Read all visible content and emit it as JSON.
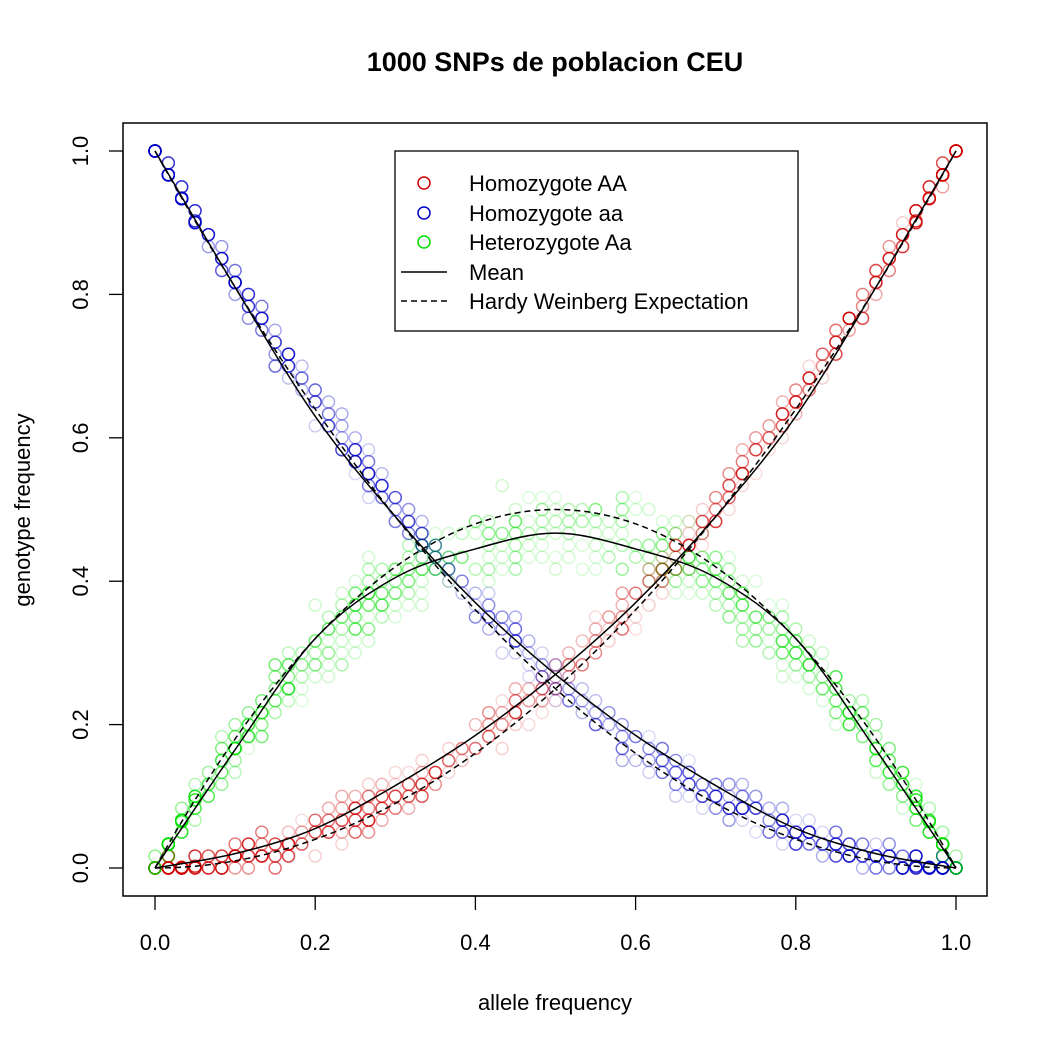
{
  "chart_data": {
    "type": "scatter",
    "title": "1000 SNPs de poblacion CEU",
    "xlabel": "allele frequency",
    "ylabel": "genotype frequency",
    "xlim": [
      0,
      1
    ],
    "ylim": [
      0,
      1
    ],
    "x_ticks": [
      "0.0",
      "0.2",
      "0.4",
      "0.6",
      "0.8",
      "1.0"
    ],
    "y_ticks": [
      "0.0",
      "0.2",
      "0.4",
      "0.6",
      "0.8",
      "1.0"
    ],
    "grid": false,
    "legend_position": "top-center",
    "series": [
      {
        "name": "Homozygote AA",
        "kind": "points",
        "color": "#d00000",
        "formula": "p^2",
        "spread": 0.035
      },
      {
        "name": "Homozygote aa",
        "kind": "points",
        "color": "#0000c8",
        "formula": "(1-p)^2",
        "spread": 0.035
      },
      {
        "name": "Heterozygote Aa",
        "kind": "points",
        "color": "#00e000",
        "formula": "2p(1-p) - deficit",
        "spread": 0.06
      },
      {
        "name": "Mean",
        "kind": "line",
        "line_style": "solid",
        "color": "#000000",
        "curves": {
          "AA": {
            "x": [
              0,
              0.1,
              0.2,
              0.3,
              0.4,
              0.5,
              0.6,
              0.7,
              0.8,
              0.9,
              1.0
            ],
            "y": [
              0,
              0.02,
              0.055,
              0.115,
              0.185,
              0.27,
              0.37,
              0.49,
              0.63,
              0.81,
              1.0
            ]
          },
          "aa": {
            "x": [
              0,
              0.1,
              0.2,
              0.3,
              0.4,
              0.5,
              0.6,
              0.7,
              0.8,
              0.9,
              1.0
            ],
            "y": [
              1.0,
              0.81,
              0.63,
              0.49,
              0.37,
              0.27,
              0.185,
              0.115,
              0.055,
              0.02,
              0
            ]
          },
          "Aa": {
            "x": [
              0,
              0.1,
              0.2,
              0.3,
              0.4,
              0.5,
              0.6,
              0.7,
              0.8,
              0.9,
              1.0
            ],
            "y": [
              0,
              0.165,
              0.32,
              0.405,
              0.445,
              0.467,
              0.445,
              0.405,
              0.32,
              0.165,
              0
            ]
          }
        }
      },
      {
        "name": "Hardy Weinberg Expectation",
        "kind": "line",
        "line_style": "dashed",
        "color": "#000000",
        "formula": "p^2, (1-p)^2, 2p(1-p)"
      }
    ]
  }
}
